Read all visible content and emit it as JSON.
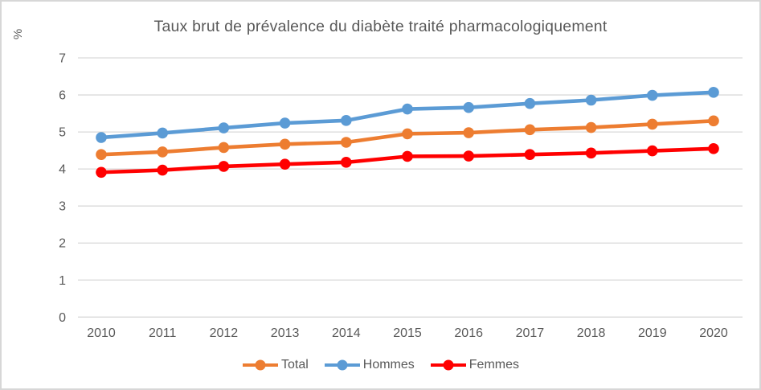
{
  "chart": {
    "title": "Taux brut de prévalence du diabète traité pharmacologiquement",
    "y_axis_title": "%"
  },
  "chart_data": {
    "type": "line",
    "title": "Taux brut de prévalence du diabète traité pharmacologiquement",
    "xlabel": "",
    "ylabel": "%",
    "categories": [
      "2010",
      "2011",
      "2012",
      "2013",
      "2014",
      "2015",
      "2016",
      "2017",
      "2018",
      "2019",
      "2020"
    ],
    "series": [
      {
        "name": "Total",
        "color": "#ED7D31",
        "values": [
          4.39,
          4.46,
          4.58,
          4.67,
          4.72,
          4.95,
          4.98,
          5.06,
          5.12,
          5.21,
          5.3
        ]
      },
      {
        "name": "Hommes",
        "color": "#5B9BD5",
        "values": [
          4.85,
          4.97,
          5.11,
          5.24,
          5.31,
          5.62,
          5.66,
          5.77,
          5.86,
          5.99,
          6.07
        ]
      },
      {
        "name": "Femmes",
        "color": "#FF0000",
        "values": [
          3.91,
          3.97,
          4.07,
          4.13,
          4.18,
          4.34,
          4.35,
          4.39,
          4.43,
          4.49,
          4.55
        ]
      }
    ],
    "ylim": [
      0,
      7
    ],
    "y_ticks": [
      0,
      1,
      2,
      3,
      4,
      5,
      6,
      7
    ],
    "grid": true,
    "gridline_color": "#D9D9D9",
    "text_color": "#595959",
    "legend_position": "bottom"
  }
}
